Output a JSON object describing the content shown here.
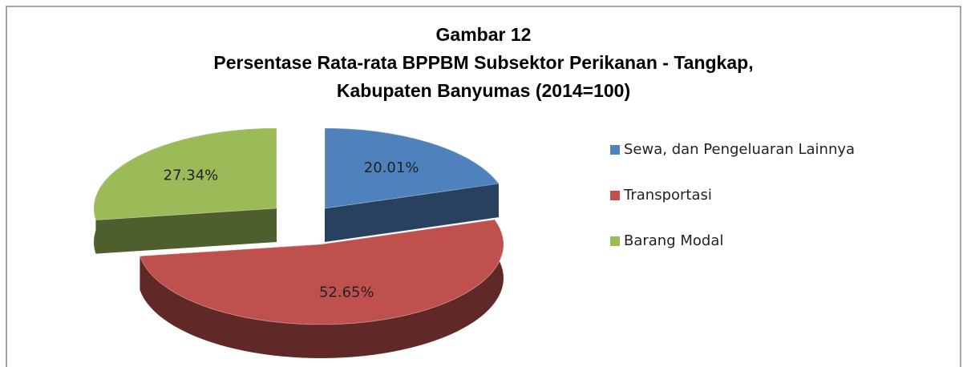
{
  "chart_data": {
    "type": "pie",
    "title": [
      "Gambar 12",
      "Persentase Rata-rata BPPBM  Subsektor Perikanan - Tangkap,",
      "Kabupaten Banyumas (2014=100)"
    ],
    "categories": [
      "Sewa, dan Pengeluaran Lainnya",
      "Transportasi",
      "Barang Modal"
    ],
    "values": [
      20.01,
      52.65,
      27.34
    ],
    "value_labels": [
      "20.01%",
      "52.65%",
      "27.34%"
    ],
    "colors": [
      "#4f81bd",
      "#c0504d",
      "#9bbb59"
    ],
    "legend": "right"
  }
}
